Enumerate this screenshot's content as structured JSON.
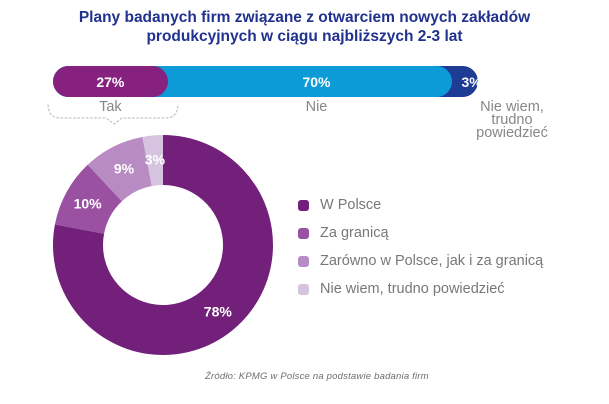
{
  "title": {
    "line1": "Plany badanych firm związane z otwarciem nowych zakładów",
    "line2": "produkcyjnych w ciągu najbliższych 2-3 lat"
  },
  "chart_data": [
    {
      "type": "bar",
      "subtype": "horizontal-stacked-single",
      "categories": [
        "Tak",
        "Nie",
        "Nie wiem,\ntrudno powiedzieć"
      ],
      "values": [
        27,
        70,
        3
      ],
      "data_labels": [
        "27%",
        "70%",
        "3%"
      ],
      "colors": [
        "#87217F",
        "#0D9BD7",
        "#1E3C94"
      ],
      "category_label_color": "#85878A",
      "xlim": [
        0,
        100
      ],
      "grid": false
    },
    {
      "type": "pie",
      "subtype": "donut",
      "categories": [
        "W Polsce",
        "Za granicą",
        "Zarówno w Polsce, jak i za granicą",
        "Nie wiem, trudno powiedzieć"
      ],
      "values": [
        78,
        10,
        9,
        3
      ],
      "data_labels": [
        "78%",
        "10%",
        "9%",
        "3%"
      ],
      "colors": [
        "#72207A",
        "#9A51A2",
        "#B88CC3",
        "#D5C3DF"
      ],
      "start_angle": 0,
      "direction": "clockwise",
      "legend_position": "right",
      "legend_text_color": "#77787B"
    }
  ],
  "source": "Źródło: KPMG w Polsce na podstawie badania firm"
}
